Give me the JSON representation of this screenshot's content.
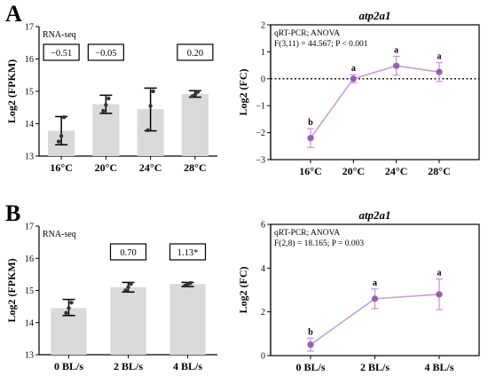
{
  "colors": {
    "bar_fill": "#d9d9d9",
    "line": "#c79be0",
    "marker": "#9b59b6",
    "error": "#000000",
    "axis": "#000000"
  },
  "chart_data": [
    {
      "panel": "A",
      "type": "bar",
      "title": "",
      "annotation": "RNA-seq",
      "ylabel": "Log2 (FPKM)",
      "xlabel": "",
      "ylim": [
        13,
        17
      ],
      "yticks": [
        13,
        14,
        15,
        16,
        17
      ],
      "categories": [
        "16°C",
        "20°C",
        "24°C",
        "28°C"
      ],
      "values": [
        13.78,
        14.6,
        14.45,
        14.92
      ],
      "error": [
        [
          13.35,
          14.22
        ],
        [
          14.32,
          14.88
        ],
        [
          13.78,
          15.1
        ],
        [
          14.82,
          15.02
        ]
      ],
      "points": [
        [
          13.45,
          13.62,
          14.2
        ],
        [
          14.4,
          14.58,
          14.78
        ],
        [
          13.8,
          14.55,
          15.0
        ],
        [
          14.85,
          14.9,
          14.98
        ]
      ],
      "fold_change_labels": [
        "−0.51",
        "−0.05",
        "",
        "0.20"
      ]
    },
    {
      "panel": "A",
      "type": "line",
      "title": "atp2a1",
      "annotation_line1": "qRT-PCR; ANOVA",
      "annotation_line2": "F(3,11) = 44.567; P < 0.001",
      "ylabel": "Log2 (FC)",
      "xlabel": "",
      "ylim": [
        -3,
        2
      ],
      "yticks": [
        -3,
        -2,
        -1,
        0,
        1,
        2
      ],
      "reference_line": 0,
      "categories": [
        "16°C",
        "20°C",
        "24°C",
        "28°C"
      ],
      "values": [
        -2.2,
        0.0,
        0.48,
        0.25
      ],
      "error": [
        0.35,
        0.15,
        0.35,
        0.35
      ],
      "letters": [
        "b",
        "a",
        "a",
        "a"
      ]
    },
    {
      "panel": "B",
      "type": "bar",
      "title": "",
      "annotation": "RNA-seq",
      "ylabel": "Log2 (FPKM)",
      "xlabel": "",
      "ylim": [
        13,
        17
      ],
      "yticks": [
        13,
        14,
        15,
        16,
        17
      ],
      "categories": [
        "0 BL/s",
        "2 BL/s",
        "4 BL/s"
      ],
      "values": [
        14.45,
        15.1,
        15.2
      ],
      "error": [
        [
          14.22,
          14.72
        ],
        [
          14.95,
          15.25
        ],
        [
          15.12,
          15.25
        ]
      ],
      "points": [
        [
          14.3,
          14.45,
          14.62
        ],
        [
          15.0,
          15.1,
          15.2
        ],
        [
          15.15,
          15.2,
          15.23
        ]
      ],
      "fold_change_labels": [
        "",
        "0.70",
        "1.13*"
      ]
    },
    {
      "panel": "B",
      "type": "line",
      "title": "atp2a1",
      "annotation_line1": "qRT-PCR; ANOVA",
      "annotation_line2": "F(2,8) = 18.165; P = 0.003",
      "ylabel": "Log2 (FC)",
      "xlabel": "",
      "ylim": [
        0,
        6
      ],
      "yticks": [
        0,
        2,
        4,
        6
      ],
      "categories": [
        "0 BL/s",
        "2 BL/s",
        "4 BL/s"
      ],
      "values": [
        0.5,
        2.6,
        2.8
      ],
      "error": [
        0.3,
        0.45,
        0.7
      ],
      "letters": [
        "b",
        "a",
        "a"
      ]
    }
  ],
  "panels": {
    "A": "A",
    "B": "B"
  }
}
